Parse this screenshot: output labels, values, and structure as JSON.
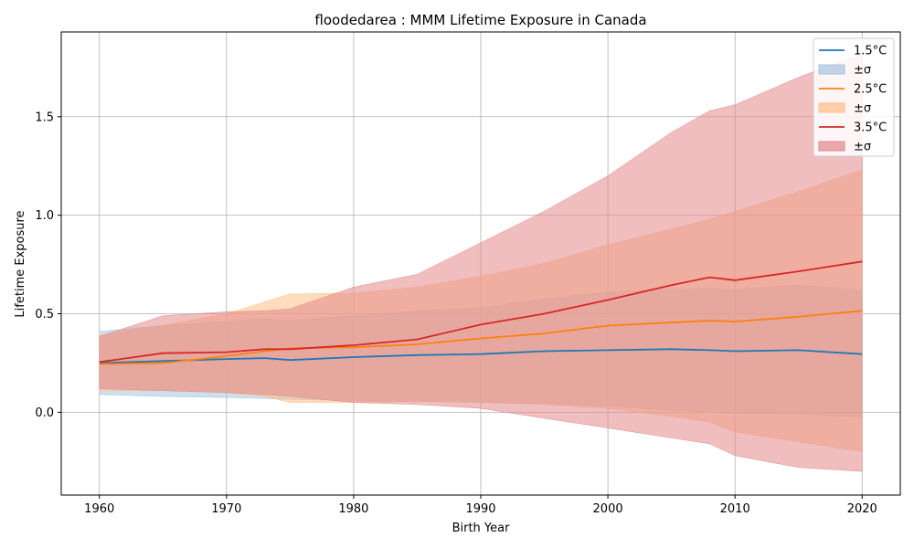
{
  "chart_data": {
    "type": "line",
    "title": "floodedarea : MMM Lifetime Exposure in Canada",
    "xlabel": "Birth Year",
    "ylabel": "Lifetime Exposure",
    "xlim": [
      1957,
      2023
    ],
    "ylim": [
      -0.42,
      1.93
    ],
    "xticks": [
      1960,
      1970,
      1980,
      1990,
      2000,
      2010,
      2020
    ],
    "yticks": [
      0.0,
      0.5,
      1.0,
      1.5
    ],
    "ytick_labels": [
      "0.0",
      "0.5",
      "1.0",
      "1.5"
    ],
    "grid": true,
    "legend_position": "top-right",
    "legend": [
      "1.5°C",
      "±σ",
      "2.5°C",
      "±σ",
      "3.5°C",
      "±σ"
    ],
    "x": [
      1960,
      1965,
      1970,
      1973,
      1975,
      1980,
      1985,
      1990,
      1995,
      2000,
      2005,
      2008,
      2010,
      2015,
      2020
    ],
    "series": [
      {
        "name": "1.5°C",
        "color": "#1f77b4",
        "band_color": "#a6c5e0",
        "values": [
          0.25,
          0.26,
          0.27,
          0.275,
          0.265,
          0.28,
          0.29,
          0.295,
          0.31,
          0.315,
          0.32,
          0.315,
          0.31,
          0.315,
          0.295
        ],
        "upper": [
          0.41,
          0.44,
          0.46,
          0.475,
          0.465,
          0.49,
          0.515,
          0.53,
          0.575,
          0.61,
          0.625,
          0.63,
          0.625,
          0.645,
          0.62
        ],
        "lower": [
          0.09,
          0.08,
          0.075,
          0.07,
          0.065,
          0.06,
          0.055,
          0.05,
          0.045,
          0.03,
          0.01,
          0.0,
          -0.005,
          -0.01,
          -0.025
        ]
      },
      {
        "name": "2.5°C",
        "color": "#ff7f0e",
        "band_color": "#ffbf87",
        "values": [
          0.245,
          0.25,
          0.285,
          0.31,
          0.325,
          0.33,
          0.345,
          0.375,
          0.4,
          0.44,
          0.455,
          0.465,
          0.46,
          0.485,
          0.515
        ],
        "upper": [
          0.39,
          0.44,
          0.5,
          0.56,
          0.6,
          0.605,
          0.635,
          0.69,
          0.755,
          0.85,
          0.93,
          0.98,
          1.02,
          1.12,
          1.23
        ],
        "lower": [
          0.11,
          0.11,
          0.1,
          0.08,
          0.05,
          0.05,
          0.055,
          0.05,
          0.04,
          0.02,
          -0.02,
          -0.05,
          -0.1,
          -0.15,
          -0.2
        ]
      },
      {
        "name": "3.5°C",
        "color": "#d62728",
        "band_color": "#e3888b",
        "values": [
          0.255,
          0.3,
          0.305,
          0.32,
          0.32,
          0.34,
          0.37,
          0.445,
          0.5,
          0.57,
          0.645,
          0.685,
          0.67,
          0.715,
          0.765
        ],
        "upper": [
          0.385,
          0.49,
          0.51,
          0.515,
          0.525,
          0.635,
          0.7,
          0.86,
          1.02,
          1.2,
          1.42,
          1.53,
          1.56,
          1.7,
          1.82
        ],
        "lower": [
          0.12,
          0.11,
          0.1,
          0.09,
          0.08,
          0.05,
          0.04,
          0.02,
          -0.03,
          -0.08,
          -0.13,
          -0.16,
          -0.22,
          -0.28,
          -0.3
        ]
      }
    ]
  }
}
